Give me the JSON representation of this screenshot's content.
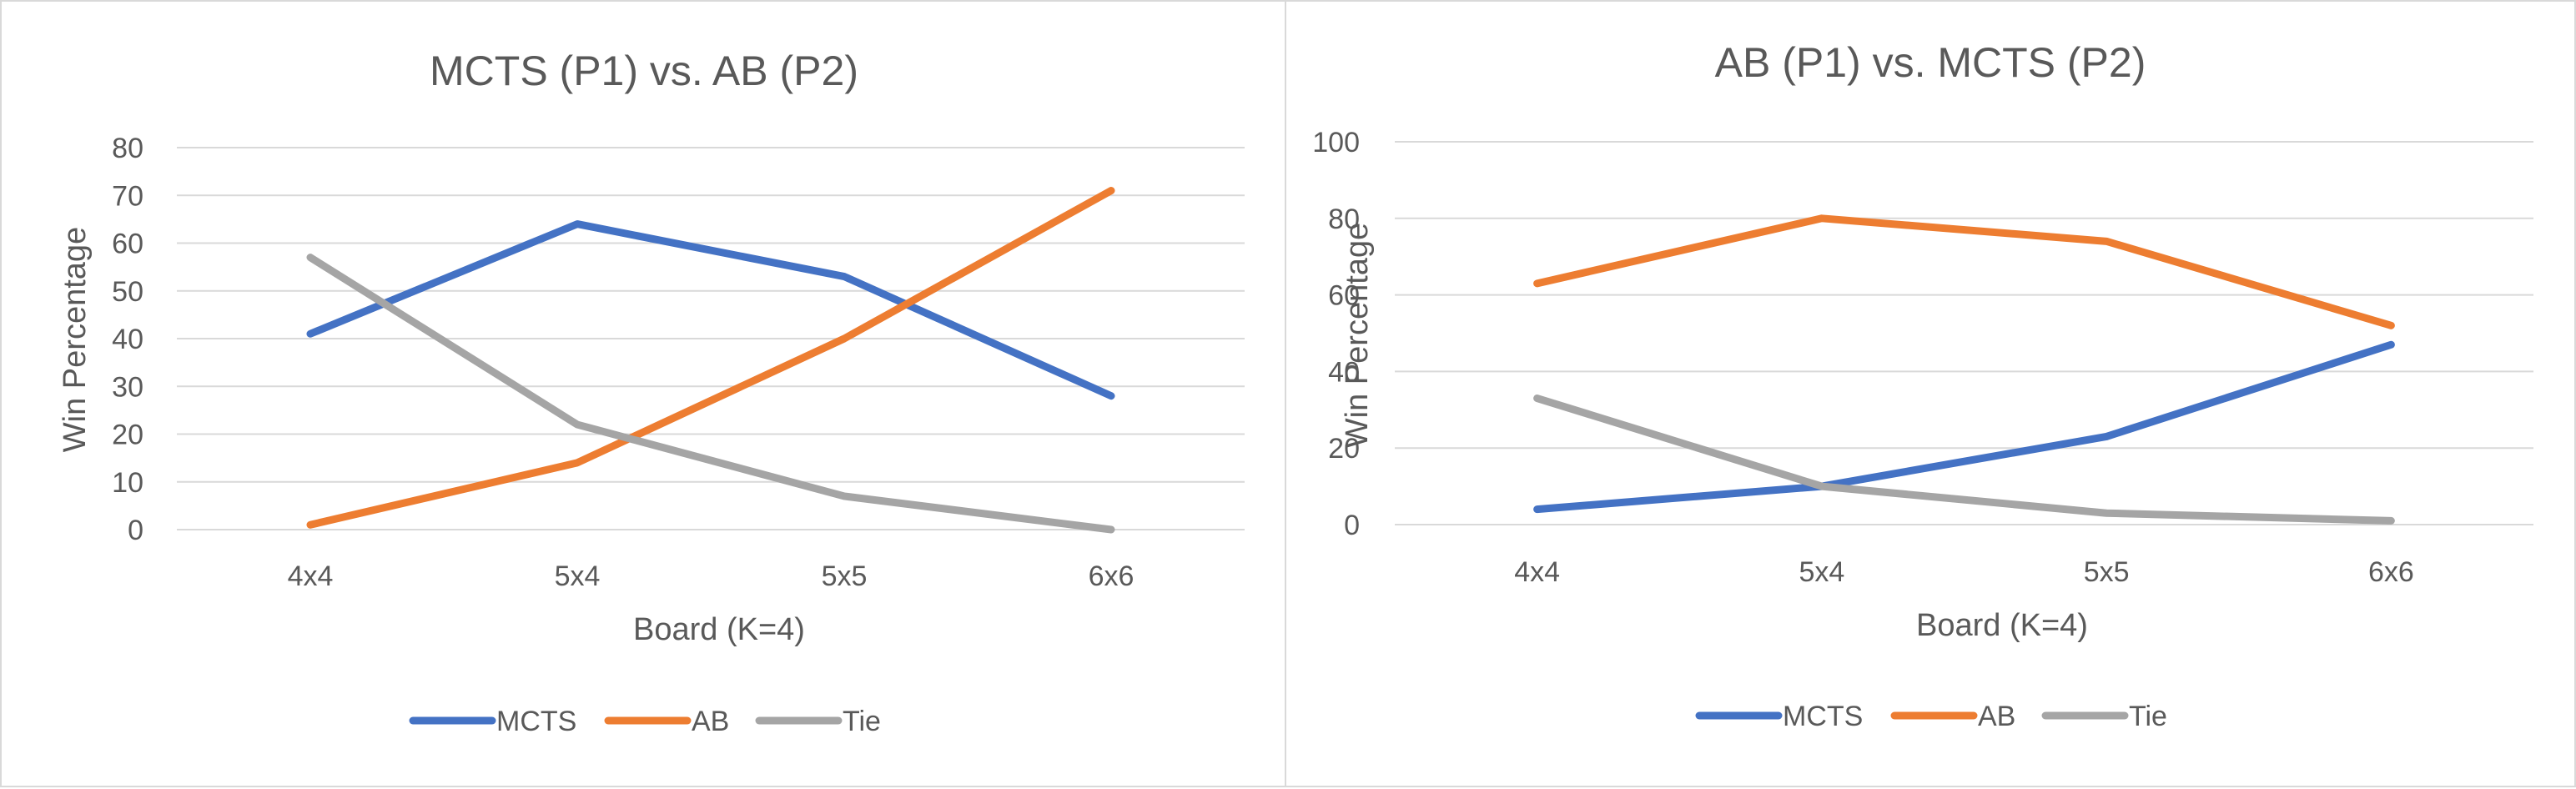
{
  "chart_data": [
    {
      "type": "line",
      "title": "MCTS (P1) vs. AB (P2)",
      "xlabel": "Board (K=4)",
      "ylabel": "Win Percentage",
      "categories": [
        "4x4",
        "5x4",
        "5x5",
        "6x6"
      ],
      "ylim": [
        0,
        80
      ],
      "yticks": [
        "0",
        "10",
        "20",
        "30",
        "40",
        "50",
        "60",
        "70",
        "80"
      ],
      "grid": true,
      "legend": "bottom",
      "series": [
        {
          "name": "MCTS",
          "color": "#4472c4",
          "values": [
            41,
            64,
            53,
            28
          ]
        },
        {
          "name": "AB",
          "color": "#ed7d31",
          "values": [
            1,
            14,
            40,
            71
          ]
        },
        {
          "name": "Tie",
          "color": "#a5a5a5",
          "values": [
            57,
            22,
            7,
            0
          ]
        }
      ]
    },
    {
      "type": "line",
      "title": "AB (P1) vs. MCTS (P2)",
      "xlabel": "Board (K=4)",
      "ylabel": "Win Percentage",
      "categories": [
        "4x4",
        "5x4",
        "5x5",
        "6x6"
      ],
      "ylim": [
        0,
        100
      ],
      "yticks": [
        "0",
        "20",
        "40",
        "60",
        "80",
        "100"
      ],
      "grid": true,
      "legend": "bottom",
      "series": [
        {
          "name": "MCTS",
          "color": "#4472c4",
          "values": [
            4,
            10,
            23,
            47
          ]
        },
        {
          "name": "AB",
          "color": "#ed7d31",
          "values": [
            63,
            80,
            74,
            52
          ]
        },
        {
          "name": "Tie",
          "color": "#a5a5a5",
          "values": [
            33,
            10,
            3,
            1
          ]
        }
      ]
    }
  ]
}
